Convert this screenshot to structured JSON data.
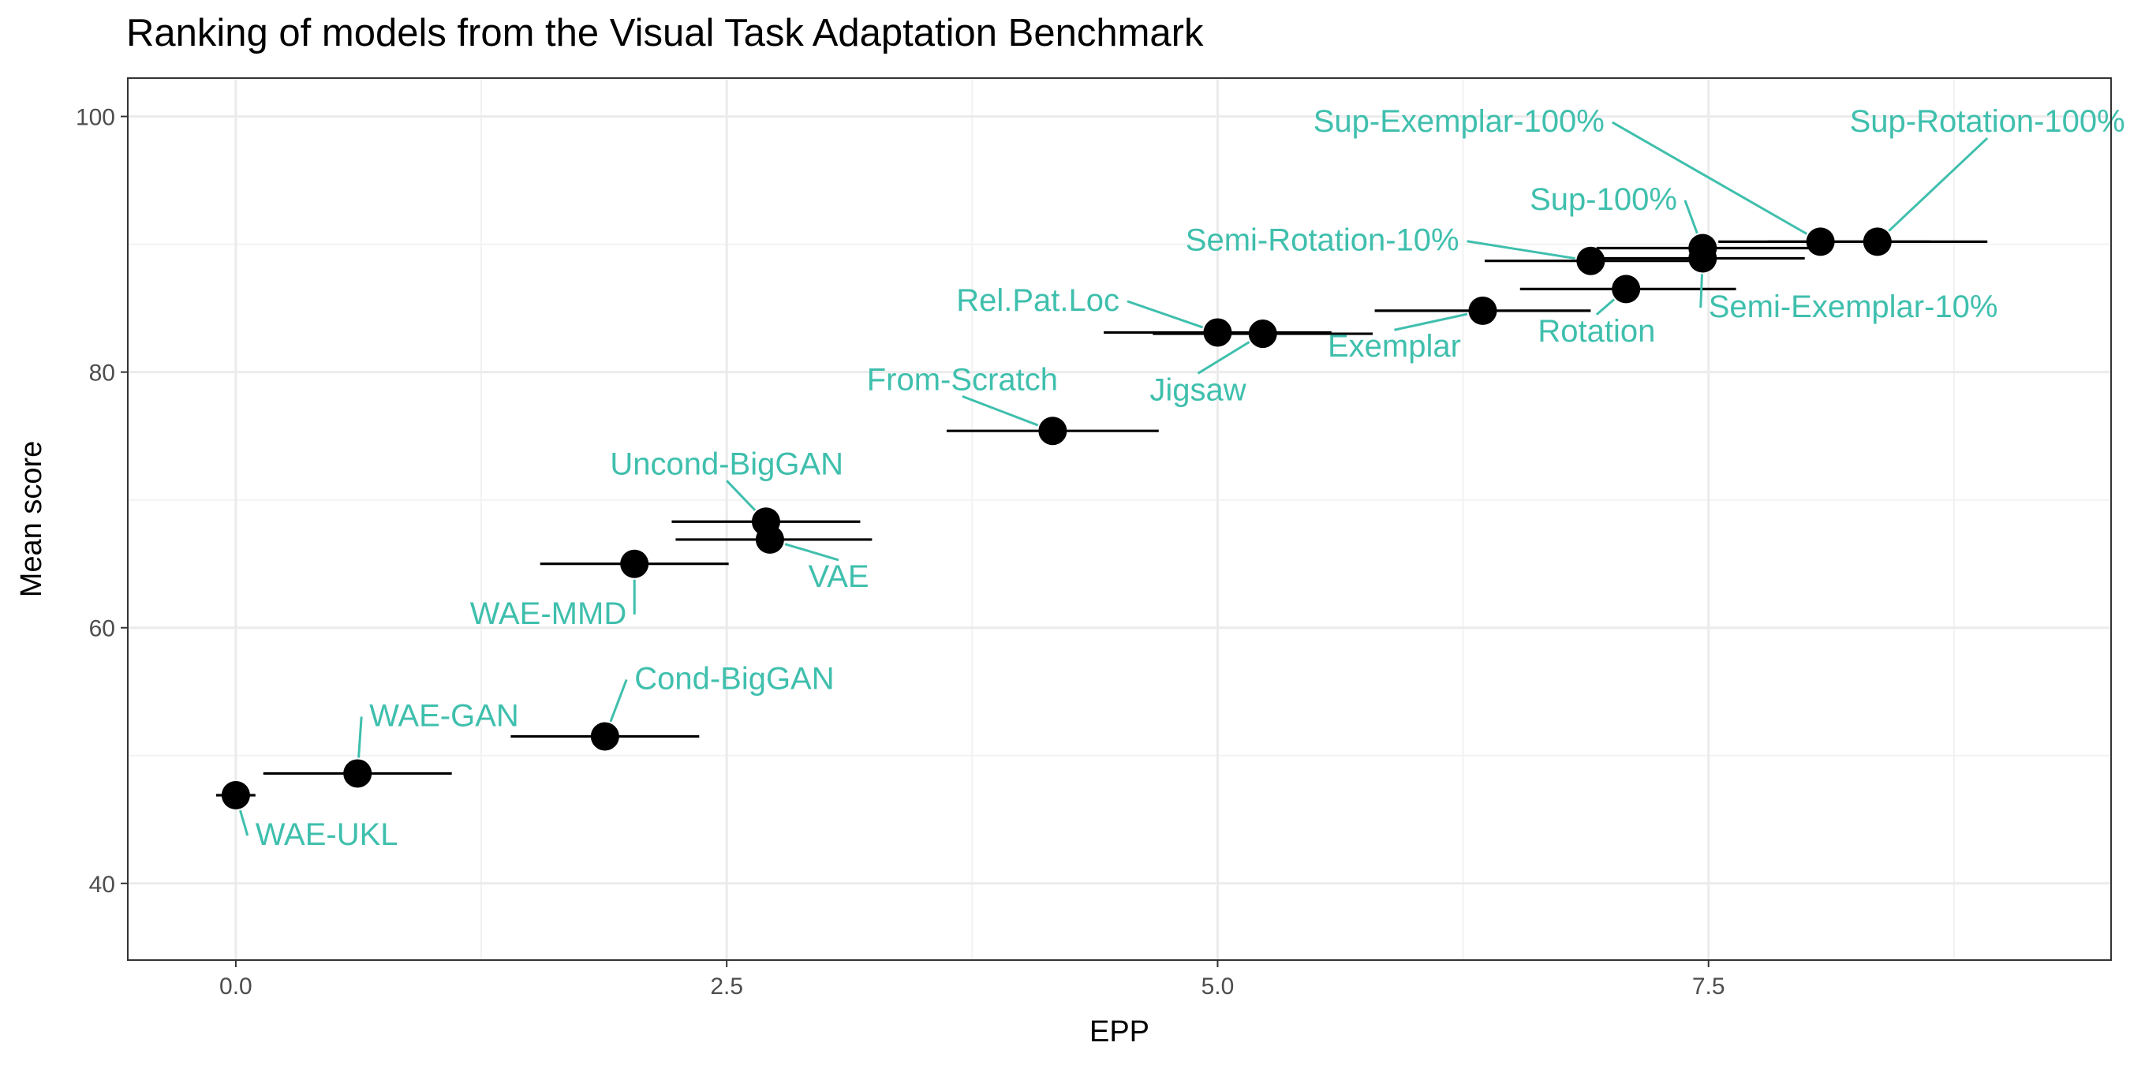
{
  "chart_data": {
    "type": "scatter",
    "title": "Ranking of models from the Visual Task Adaptation Benchmark",
    "xlabel": "EPP",
    "ylabel": "Mean score",
    "xlim": [
      -0.55,
      9.55
    ],
    "ylim": [
      34,
      103
    ],
    "xticks": [
      0.0,
      2.5,
      5.0,
      7.5
    ],
    "xtick_labels": [
      "0.0",
      "2.5",
      "5.0",
      "7.5"
    ],
    "yticks": [
      40,
      60,
      80,
      100
    ],
    "ytick_labels": [
      "40",
      "60",
      "80",
      "100"
    ],
    "grid": true,
    "label_color": "#3fbfad",
    "points": [
      {
        "label": "WAE-UKL",
        "x": 0.0,
        "y": 46.9,
        "xmin": -0.1,
        "xmax": 0.1,
        "lx": 0.1,
        "ly": 43.0,
        "anchor": "start"
      },
      {
        "label": "WAE-GAN",
        "x": 0.62,
        "y": 48.6,
        "xmin": 0.14,
        "xmax": 1.1,
        "lx": 0.68,
        "ly": 52.3,
        "anchor": "start"
      },
      {
        "label": "Cond-BigGAN",
        "x": 1.88,
        "y": 51.5,
        "xmin": 1.4,
        "xmax": 2.36,
        "lx": 2.03,
        "ly": 55.2,
        "anchor": "start"
      },
      {
        "label": "WAE-MMD",
        "x": 2.03,
        "y": 65.0,
        "xmin": 1.55,
        "xmax": 2.51,
        "lx": 1.99,
        "ly": 60.3,
        "anchor": "end"
      },
      {
        "label": "Uncond-BigGAN",
        "x": 2.7,
        "y": 68.3,
        "xmin": 2.22,
        "xmax": 3.18,
        "lx": 2.5,
        "ly": 72.0,
        "anchor": "middle"
      },
      {
        "label": "VAE",
        "x": 2.72,
        "y": 66.9,
        "xmin": 2.24,
        "xmax": 3.24,
        "lx": 3.07,
        "ly": 63.2,
        "anchor": "middle"
      },
      {
        "label": "From-Scratch",
        "x": 4.16,
        "y": 75.4,
        "xmin": 3.62,
        "xmax": 4.7,
        "lx": 3.7,
        "ly": 78.6,
        "anchor": "middle"
      },
      {
        "label": "Rel.Pat.Loc",
        "x": 5.0,
        "y": 83.1,
        "xmin": 4.42,
        "xmax": 5.58,
        "lx": 4.5,
        "ly": 84.8,
        "anchor": "end"
      },
      {
        "label": "Jigsaw",
        "x": 5.23,
        "y": 83.0,
        "xmin": 4.67,
        "xmax": 5.79,
        "lx": 4.9,
        "ly": 77.8,
        "anchor": "middle"
      },
      {
        "label": "Exemplar",
        "x": 6.35,
        "y": 84.8,
        "xmin": 5.8,
        "xmax": 6.9,
        "lx": 5.9,
        "ly": 81.2,
        "anchor": "middle"
      },
      {
        "label": "Rotation",
        "x": 7.08,
        "y": 86.5,
        "xmin": 6.54,
        "xmax": 7.64,
        "lx": 6.93,
        "ly": 82.4,
        "anchor": "middle"
      },
      {
        "label": "Semi-Rotation-10%",
        "x": 6.9,
        "y": 88.7,
        "xmin": 6.36,
        "xmax": 7.44,
        "lx": 6.23,
        "ly": 89.5,
        "anchor": "end"
      },
      {
        "label": "Semi-Exemplar-10%",
        "x": 7.47,
        "y": 88.9,
        "xmin": 6.95,
        "xmax": 7.99,
        "lx": 7.5,
        "ly": 84.3,
        "anchor": "start"
      },
      {
        "label": "Sup-100%",
        "x": 7.47,
        "y": 89.7,
        "xmin": 6.93,
        "xmax": 8.01,
        "lx": 7.34,
        "ly": 92.7,
        "anchor": "end"
      },
      {
        "label": "Sup-Exemplar-100%",
        "x": 8.07,
        "y": 90.2,
        "xmin": 7.55,
        "xmax": 8.63,
        "lx": 6.97,
        "ly": 98.8,
        "anchor": "end"
      },
      {
        "label": "Sup-Rotation-100%",
        "x": 8.36,
        "y": 90.2,
        "xmin": 7.8,
        "xmax": 8.92,
        "lx": 8.92,
        "ly": 98.8,
        "anchor": "middle"
      }
    ]
  }
}
